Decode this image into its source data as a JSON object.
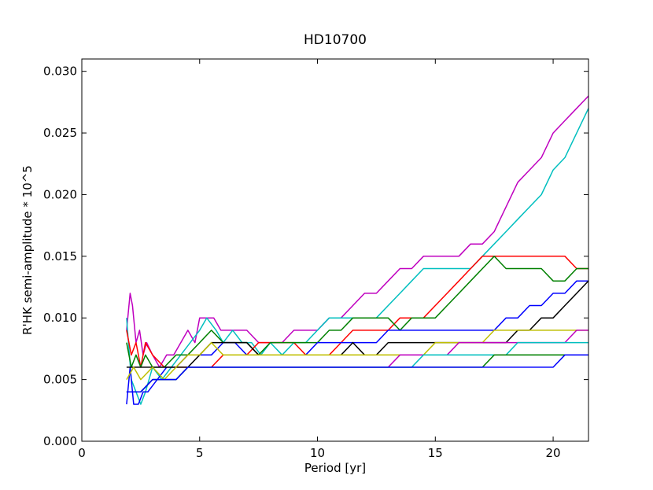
{
  "chart_data": {
    "type": "line",
    "title": "HD10700",
    "xlabel": "Period [yr]",
    "ylabel": "R'HK semi-amplitude * 10^5",
    "xlim": [
      0,
      21.5
    ],
    "ylim": [
      0,
      0.031
    ],
    "xticks": [
      0,
      5,
      10,
      15,
      20
    ],
    "xtick_labels": [
      "0",
      "5",
      "10",
      "15",
      "20"
    ],
    "yticks": [
      0.0,
      0.005,
      0.01,
      0.015,
      0.02,
      0.025,
      0.03
    ],
    "ytick_labels": [
      "0.000",
      "0.005",
      "0.010",
      "0.015",
      "0.020",
      "0.025",
      "0.030"
    ],
    "grid": false,
    "legend": "none",
    "series": [
      {
        "color": "#bf00bf",
        "x": [
          1.9,
          2.05,
          2.15,
          2.3,
          2.45,
          2.6,
          2.75,
          3.0,
          3.3,
          3.6,
          3.9,
          4.2,
          4.5,
          4.8,
          5.0,
          5.2,
          5.6,
          5.9,
          6.2,
          6.5,
          7.0,
          7.5,
          8.0,
          8.5,
          9.0,
          9.5,
          10.0,
          10.5,
          11.0,
          11.5,
          12.0,
          12.5,
          13.0,
          13.5,
          14.0,
          14.5,
          15.0,
          15.5,
          16.0,
          16.5,
          17.0,
          17.5,
          18.0,
          18.5,
          19.0,
          19.5,
          20.0,
          20.5,
          21.0,
          21.5
        ],
        "y": [
          0.009,
          0.012,
          0.011,
          0.008,
          0.009,
          0.007,
          0.008,
          0.007,
          0.006,
          0.007,
          0.007,
          0.008,
          0.009,
          0.008,
          0.01,
          0.01,
          0.01,
          0.009,
          0.009,
          0.009,
          0.009,
          0.008,
          0.008,
          0.008,
          0.009,
          0.009,
          0.009,
          0.01,
          0.01,
          0.011,
          0.012,
          0.012,
          0.013,
          0.014,
          0.014,
          0.015,
          0.015,
          0.015,
          0.015,
          0.016,
          0.016,
          0.017,
          0.019,
          0.021,
          0.022,
          0.023,
          0.025,
          0.026,
          0.027,
          0.028
        ]
      },
      {
        "color": "#00bfbf",
        "x": [
          1.9,
          2.1,
          2.3,
          2.5,
          2.7,
          3.0,
          3.4,
          3.8,
          4.2,
          4.6,
          5.0,
          5.3,
          5.7,
          6.0,
          6.4,
          6.8,
          7.2,
          7.6,
          8.0,
          8.5,
          9.0,
          9.5,
          10.0,
          10.5,
          11.0,
          11.5,
          12.0,
          12.5,
          13.0,
          13.5,
          14.0,
          14.5,
          15.0,
          15.5,
          16.0,
          16.5,
          17.0,
          17.5,
          18.0,
          18.5,
          19.0,
          19.5,
          20.0,
          20.5,
          21.0,
          21.5
        ],
        "y": [
          0.01,
          0.005,
          0.004,
          0.003,
          0.004,
          0.006,
          0.005,
          0.006,
          0.007,
          0.008,
          0.009,
          0.01,
          0.009,
          0.008,
          0.009,
          0.008,
          0.008,
          0.007,
          0.008,
          0.007,
          0.008,
          0.008,
          0.009,
          0.01,
          0.01,
          0.01,
          0.01,
          0.01,
          0.011,
          0.012,
          0.013,
          0.014,
          0.014,
          0.014,
          0.014,
          0.014,
          0.015,
          0.016,
          0.017,
          0.018,
          0.019,
          0.02,
          0.022,
          0.023,
          0.025,
          0.027
        ]
      },
      {
        "color": "#ff0000",
        "x": [
          1.9,
          2.1,
          2.3,
          2.5,
          2.7,
          3.0,
          3.5,
          4.0,
          4.5,
          5.0,
          5.5,
          6.0,
          6.5,
          7.0,
          7.5,
          8.0,
          8.5,
          9.0,
          9.5,
          10.0,
          10.5,
          11.0,
          11.5,
          12.0,
          12.5,
          13.0,
          13.5,
          14.0,
          14.5,
          15.0,
          15.5,
          16.0,
          16.5,
          17.0,
          17.5,
          18.0,
          18.5,
          19.0,
          19.5,
          20.0,
          20.5,
          21.0,
          21.5
        ],
        "y": [
          0.009,
          0.007,
          0.008,
          0.006,
          0.008,
          0.007,
          0.006,
          0.006,
          0.006,
          0.006,
          0.006,
          0.007,
          0.007,
          0.007,
          0.008,
          0.008,
          0.008,
          0.008,
          0.007,
          0.007,
          0.007,
          0.008,
          0.009,
          0.009,
          0.009,
          0.009,
          0.01,
          0.01,
          0.01,
          0.011,
          0.012,
          0.013,
          0.014,
          0.015,
          0.015,
          0.015,
          0.015,
          0.015,
          0.015,
          0.015,
          0.015,
          0.014,
          0.014
        ]
      },
      {
        "color": "#008000",
        "x": [
          1.9,
          2.1,
          2.3,
          2.5,
          2.7,
          3.0,
          3.5,
          4.0,
          4.5,
          5.0,
          5.5,
          6.0,
          6.5,
          7.0,
          7.5,
          8.0,
          8.5,
          9.0,
          9.5,
          10.0,
          10.5,
          11.0,
          11.5,
          12.0,
          12.5,
          13.0,
          13.5,
          14.0,
          14.5,
          15.0,
          15.5,
          16.0,
          16.5,
          17.0,
          17.5,
          18.0,
          18.5,
          19.0,
          19.5,
          20.0,
          20.5,
          21.0,
          21.5
        ],
        "y": [
          0.008,
          0.006,
          0.007,
          0.006,
          0.007,
          0.006,
          0.006,
          0.007,
          0.007,
          0.008,
          0.009,
          0.008,
          0.008,
          0.008,
          0.007,
          0.008,
          0.008,
          0.008,
          0.008,
          0.008,
          0.009,
          0.009,
          0.01,
          0.01,
          0.01,
          0.01,
          0.009,
          0.01,
          0.01,
          0.01,
          0.011,
          0.012,
          0.013,
          0.014,
          0.015,
          0.014,
          0.014,
          0.014,
          0.014,
          0.013,
          0.013,
          0.014,
          0.014
        ]
      },
      {
        "color": "#0000ff",
        "x": [
          1.9,
          2.05,
          2.2,
          2.4,
          2.6,
          2.8,
          3.2,
          3.6,
          4.0,
          4.5,
          5.0,
          5.5,
          6.0,
          6.5,
          7.0,
          7.5,
          8.0,
          8.5,
          9.0,
          9.5,
          10.0,
          10.5,
          11.0,
          11.5,
          12.0,
          12.5,
          13.0,
          13.5,
          14.0,
          14.5,
          15.0,
          15.5,
          16.0,
          16.5,
          17.0,
          17.5,
          18.0,
          18.5,
          19.0,
          19.5,
          20.0,
          20.5,
          21.0,
          21.5
        ],
        "y": [
          0.003,
          0.006,
          0.003,
          0.003,
          0.004,
          0.004,
          0.005,
          0.006,
          0.006,
          0.007,
          0.007,
          0.007,
          0.008,
          0.008,
          0.007,
          0.007,
          0.007,
          0.007,
          0.007,
          0.007,
          0.008,
          0.008,
          0.008,
          0.008,
          0.008,
          0.008,
          0.009,
          0.009,
          0.009,
          0.009,
          0.009,
          0.009,
          0.009,
          0.009,
          0.009,
          0.009,
          0.01,
          0.01,
          0.011,
          0.011,
          0.012,
          0.012,
          0.013,
          0.013
        ]
      },
      {
        "color": "#000000",
        "x": [
          1.9,
          2.2,
          2.5,
          3.0,
          3.5,
          4.0,
          4.5,
          5.0,
          5.5,
          6.0,
          6.5,
          7.0,
          7.5,
          8.0,
          8.5,
          9.0,
          9.5,
          10.0,
          10.5,
          11.0,
          11.5,
          12.0,
          12.5,
          13.0,
          13.5,
          14.0,
          14.5,
          15.0,
          15.5,
          16.0,
          16.5,
          17.0,
          17.5,
          18.0,
          18.5,
          19.0,
          19.5,
          20.0,
          20.5,
          21.0,
          21.5
        ],
        "y": [
          0.006,
          0.006,
          0.006,
          0.006,
          0.006,
          0.006,
          0.006,
          0.007,
          0.008,
          0.008,
          0.008,
          0.008,
          0.007,
          0.007,
          0.007,
          0.007,
          0.007,
          0.007,
          0.007,
          0.007,
          0.008,
          0.007,
          0.007,
          0.008,
          0.008,
          0.008,
          0.008,
          0.008,
          0.008,
          0.008,
          0.008,
          0.008,
          0.008,
          0.008,
          0.009,
          0.009,
          0.01,
          0.01,
          0.011,
          0.012,
          0.013
        ]
      },
      {
        "color": "#bfbf00",
        "x": [
          1.9,
          2.2,
          2.5,
          3.0,
          3.5,
          4.0,
          4.5,
          5.0,
          5.5,
          6.0,
          6.5,
          7.0,
          7.5,
          8.0,
          8.5,
          9.0,
          9.5,
          10.0,
          10.5,
          11.0,
          11.5,
          12.0,
          12.5,
          13.0,
          13.5,
          14.0,
          14.5,
          15.0,
          15.5,
          16.0,
          16.5,
          17.0,
          17.5,
          18.0,
          18.5,
          19.0,
          19.5,
          20.0,
          20.5,
          21.0,
          21.5
        ],
        "y": [
          0.005,
          0.006,
          0.005,
          0.006,
          0.005,
          0.006,
          0.007,
          0.007,
          0.008,
          0.007,
          0.007,
          0.007,
          0.007,
          0.007,
          0.007,
          0.007,
          0.007,
          0.007,
          0.007,
          0.007,
          0.007,
          0.007,
          0.007,
          0.007,
          0.007,
          0.007,
          0.007,
          0.008,
          0.008,
          0.008,
          0.008,
          0.008,
          0.009,
          0.009,
          0.009,
          0.009,
          0.009,
          0.009,
          0.009,
          0.009,
          0.009
        ]
      },
      {
        "color": "#bf00bf",
        "x": [
          1.9,
          2.2,
          2.5,
          3.0,
          3.5,
          4.0,
          4.5,
          5.0,
          5.5,
          6.0,
          6.5,
          7.0,
          7.5,
          8.0,
          8.5,
          9.0,
          9.5,
          10.0,
          10.5,
          11.0,
          11.5,
          12.0,
          12.5,
          13.0,
          13.5,
          14.0,
          14.5,
          15.0,
          15.5,
          16.0,
          16.5,
          17.0,
          17.5,
          18.0,
          18.5,
          19.0,
          19.5,
          20.0,
          20.5,
          21.0,
          21.5
        ],
        "y": [
          0.004,
          0.004,
          0.004,
          0.005,
          0.005,
          0.005,
          0.006,
          0.006,
          0.006,
          0.006,
          0.006,
          0.006,
          0.006,
          0.006,
          0.006,
          0.006,
          0.006,
          0.006,
          0.006,
          0.006,
          0.006,
          0.006,
          0.006,
          0.006,
          0.007,
          0.007,
          0.007,
          0.007,
          0.007,
          0.008,
          0.008,
          0.008,
          0.008,
          0.008,
          0.008,
          0.008,
          0.008,
          0.008,
          0.008,
          0.009,
          0.009
        ]
      },
      {
        "color": "#00bfbf",
        "x": [
          1.9,
          2.2,
          2.5,
          3.0,
          3.5,
          4.0,
          4.5,
          5.0,
          5.5,
          6.0,
          6.5,
          7.0,
          7.5,
          8.0,
          8.5,
          9.0,
          9.5,
          10.0,
          10.5,
          11.0,
          11.5,
          12.0,
          12.5,
          13.0,
          13.5,
          14.0,
          14.5,
          15.0,
          15.5,
          16.0,
          16.5,
          17.0,
          17.5,
          18.0,
          18.5,
          19.0,
          19.5,
          20.0,
          20.5,
          21.0,
          21.5
        ],
        "y": [
          0.004,
          0.004,
          0.004,
          0.005,
          0.005,
          0.005,
          0.006,
          0.006,
          0.006,
          0.006,
          0.006,
          0.006,
          0.006,
          0.006,
          0.006,
          0.006,
          0.006,
          0.006,
          0.006,
          0.006,
          0.006,
          0.006,
          0.006,
          0.006,
          0.006,
          0.006,
          0.007,
          0.007,
          0.007,
          0.007,
          0.007,
          0.007,
          0.007,
          0.007,
          0.008,
          0.008,
          0.008,
          0.008,
          0.008,
          0.008,
          0.008
        ]
      },
      {
        "color": "#008000",
        "x": [
          1.9,
          2.2,
          2.5,
          3.0,
          3.5,
          4.0,
          4.5,
          5.0,
          5.5,
          6.0,
          6.5,
          7.0,
          7.5,
          8.0,
          8.5,
          9.0,
          9.5,
          10.0,
          10.5,
          11.0,
          11.5,
          12.0,
          12.5,
          13.0,
          13.5,
          14.0,
          14.5,
          15.0,
          15.5,
          16.0,
          16.5,
          17.0,
          17.5,
          18.0,
          18.5,
          19.0,
          19.5,
          20.0,
          20.5,
          21.0,
          21.5
        ],
        "y": [
          0.004,
          0.004,
          0.004,
          0.005,
          0.005,
          0.005,
          0.006,
          0.006,
          0.006,
          0.006,
          0.006,
          0.006,
          0.006,
          0.006,
          0.006,
          0.006,
          0.006,
          0.006,
          0.006,
          0.006,
          0.006,
          0.006,
          0.006,
          0.006,
          0.006,
          0.006,
          0.006,
          0.006,
          0.006,
          0.006,
          0.006,
          0.006,
          0.007,
          0.007,
          0.007,
          0.007,
          0.007,
          0.007,
          0.007,
          0.007,
          0.007
        ]
      },
      {
        "color": "#0000ff",
        "x": [
          1.9,
          2.2,
          2.5,
          3.0,
          3.5,
          4.0,
          4.5,
          5.0,
          5.5,
          6.0,
          6.5,
          7.0,
          7.5,
          8.0,
          8.5,
          9.0,
          9.5,
          10.0,
          10.5,
          11.0,
          11.5,
          12.0,
          12.5,
          13.0,
          13.5,
          14.0,
          14.5,
          15.0,
          15.5,
          16.0,
          16.5,
          17.0,
          17.5,
          18.0,
          18.5,
          19.0,
          19.5,
          20.0,
          20.5,
          21.0,
          21.5
        ],
        "y": [
          0.004,
          0.004,
          0.004,
          0.005,
          0.005,
          0.005,
          0.006,
          0.006,
          0.006,
          0.006,
          0.006,
          0.006,
          0.006,
          0.006,
          0.006,
          0.006,
          0.006,
          0.006,
          0.006,
          0.006,
          0.006,
          0.006,
          0.006,
          0.006,
          0.006,
          0.006,
          0.006,
          0.006,
          0.006,
          0.006,
          0.006,
          0.006,
          0.006,
          0.006,
          0.006,
          0.006,
          0.006,
          0.006,
          0.007,
          0.007,
          0.007
        ]
      }
    ]
  }
}
